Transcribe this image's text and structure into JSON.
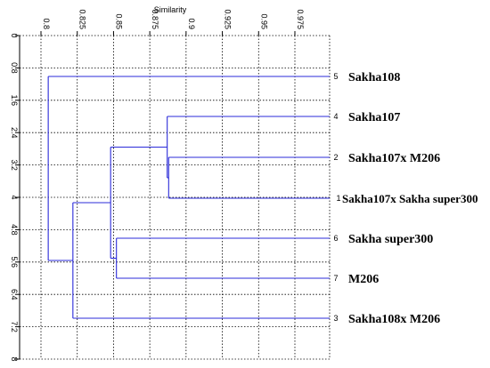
{
  "chart_data": {
    "type": "dendrogram",
    "title": "",
    "xlabel": "Similarity",
    "ylabel": "",
    "x_ticks": [
      "0.8",
      "0.825",
      "0.85",
      "0.875",
      "0.9",
      "0.925",
      "0.95",
      "0.975"
    ],
    "x_tick_values": [
      0.8,
      0.825,
      0.85,
      0.875,
      0.9,
      0.925,
      0.95,
      0.975
    ],
    "xlim": [
      0.795,
      1.0
    ],
    "y_ticks": [
      "0",
      "0.8",
      "1.6",
      "2.4",
      "3.2",
      "4",
      "4.8",
      "5.6",
      "6.4",
      "7.2",
      "8"
    ],
    "y_tick_values": [
      0,
      0.8,
      1.6,
      2.4,
      3.2,
      4,
      4.8,
      5.6,
      6.4,
      7.2,
      8
    ],
    "ylim": [
      0,
      8
    ],
    "grid": true,
    "line_color": "#2b2bd9",
    "leaves": [
      {
        "id": 5,
        "label": "Sakha108",
        "y": 0.8
      },
      {
        "id": 4,
        "label": "Sakha107",
        "y": 1.6
      },
      {
        "id": 2,
        "label": "Sakha107x M206",
        "y": 2.4
      },
      {
        "id": 1,
        "label": "Sakha107x Sakha super300",
        "y": 3.2
      },
      {
        "id": 6,
        "label": "Sakha super300",
        "y": 4.0
      },
      {
        "id": 7,
        "label": "M206",
        "y": 4.8
      },
      {
        "id": 3,
        "label": "Sakha108x M206",
        "y": 5.6
      }
    ],
    "merges": [
      {
        "children": [
          "L2",
          "L1"
        ],
        "similarity": 0.888
      },
      {
        "children": [
          "L4",
          "M1"
        ],
        "similarity": 0.887
      },
      {
        "children": [
          "L6",
          "L7"
        ],
        "similarity": 0.852
      },
      {
        "children": [
          "M2",
          "M3"
        ],
        "similarity": 0.848
      },
      {
        "children": [
          "M4",
          "L3"
        ],
        "similarity": 0.822
      },
      {
        "children": [
          "L5",
          "M5"
        ],
        "similarity": 0.805
      }
    ]
  }
}
